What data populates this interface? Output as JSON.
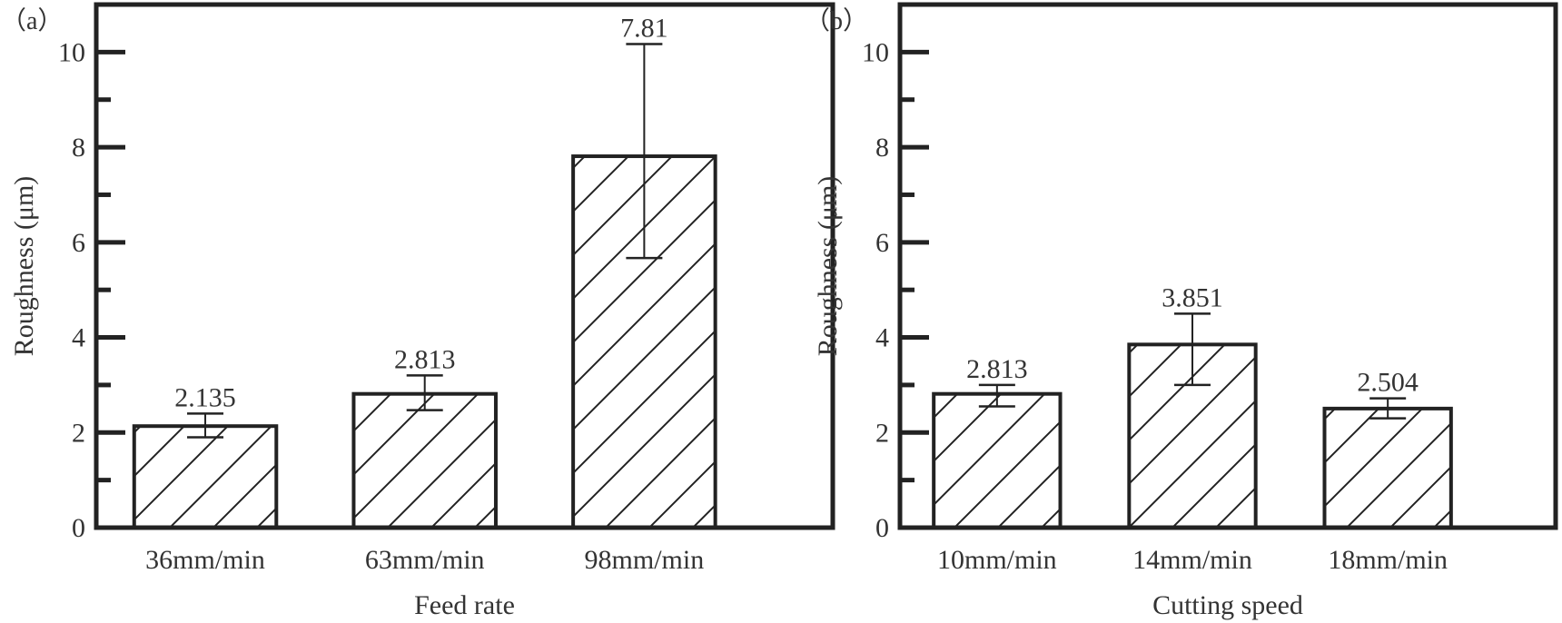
{
  "chart_data": [
    {
      "type": "bar",
      "panel_label": "（a）",
      "xlabel": "Feed rate",
      "ylabel": "Roughness (μm)",
      "categories": [
        "36mm/min",
        "63mm/min",
        "98mm/min"
      ],
      "values": [
        2.135,
        2.813,
        7.81
      ],
      "value_labels": [
        "2.135",
        "2.813",
        "7.81"
      ],
      "error_low": [
        1.9,
        2.47,
        5.67
      ],
      "error_high": [
        2.4,
        3.2,
        10.17
      ],
      "ylim": [
        0,
        11
      ],
      "yticks": [
        0,
        2,
        4,
        6,
        8,
        10
      ],
      "grid": false,
      "bar_fill": "diagonal-hatch",
      "color": "#222222"
    },
    {
      "type": "bar",
      "panel_label": "（b）",
      "xlabel": "Cutting speed",
      "ylabel": "Roughness (μm)",
      "categories": [
        "10mm/min",
        "14mm/min",
        "18mm/min"
      ],
      "values": [
        2.813,
        3.851,
        2.504
      ],
      "value_labels": [
        "2.813",
        "3.851",
        "2.504"
      ],
      "error_low": [
        2.55,
        3.0,
        2.3
      ],
      "error_high": [
        3.0,
        4.5,
        2.72
      ],
      "ylim": [
        0,
        11
      ],
      "yticks": [
        0,
        2,
        4,
        6,
        8,
        10
      ],
      "grid": false,
      "bar_fill": "diagonal-hatch",
      "color": "#222222"
    }
  ]
}
